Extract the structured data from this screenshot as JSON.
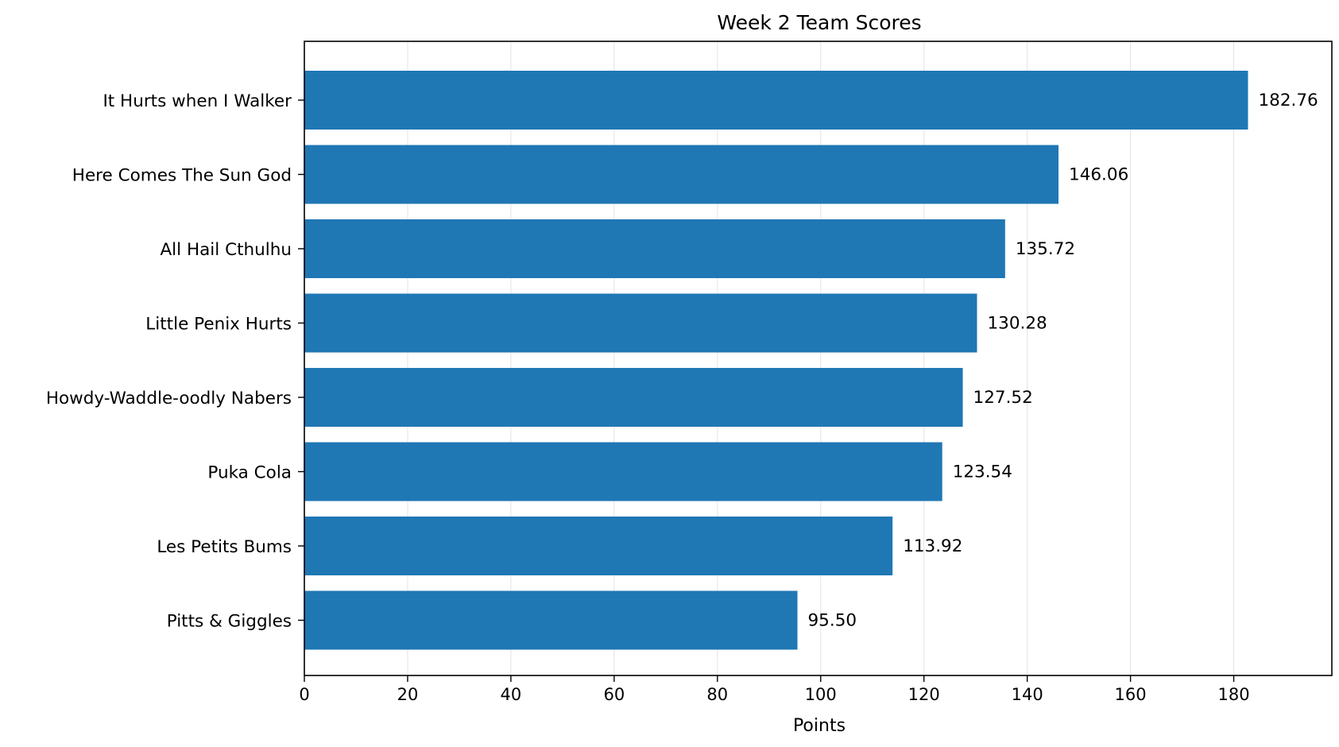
{
  "chart_data": {
    "type": "bar",
    "orientation": "horizontal",
    "title": "Week 2 Team Scores",
    "xlabel": "Points",
    "ylabel": "",
    "xlim": [
      0,
      199
    ],
    "xticks": [
      0,
      20,
      40,
      60,
      80,
      100,
      120,
      140,
      160,
      180
    ],
    "grid": "vertical",
    "bar_color": "#1f77b4",
    "categories": [
      "It Hurts when I Walker",
      "Here Comes The Sun God",
      "All Hail Cthulhu",
      "Little Penix Hurts",
      "Howdy-Waddle-oodly Nabers",
      "Puka Cola",
      "Les Petits Bums",
      "Pitts & Giggles"
    ],
    "values": [
      182.76,
      146.06,
      135.72,
      130.28,
      127.52,
      123.54,
      113.92,
      95.5
    ],
    "value_labels": [
      "182.76",
      "146.06",
      "135.72",
      "130.28",
      "127.52",
      "123.54",
      "113.92",
      "95.50"
    ]
  }
}
